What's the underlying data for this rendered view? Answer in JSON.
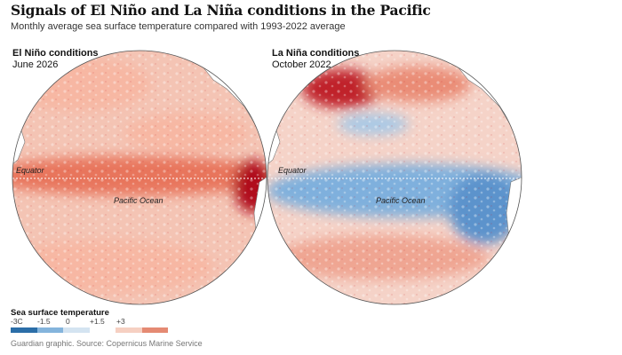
{
  "title": "Signals of El Niño and La Niña conditions in the Pacific",
  "subtitle": "Monthly average sea surface temperature compared with 1993-2022 average",
  "panels": [
    {
      "name": "El Niño conditions",
      "date": "June 2026",
      "equator_label": "Equator",
      "ocean_label": "Pacific Ocean",
      "colors": {
        "base": "#f4c4b4",
        "equator": "#e8745c",
        "coast": "#b0101e",
        "north": "#f7b7a3"
      }
    },
    {
      "name": "La Niña conditions",
      "date": "October 2022",
      "equator_label": "Equator",
      "ocean_label": "Pacific Ocean",
      "colors": {
        "base": "#f5d3c8",
        "equator": "#7fb0dd",
        "coast": "#5b93cc",
        "north": "#c0202c"
      }
    }
  ],
  "legend": {
    "title": "Sea surface temperature",
    "ticks": [
      "-3C",
      "-1.5",
      "0",
      "+1.5",
      "+3"
    ],
    "colors": [
      "#2b6ea8",
      "#84b4dc",
      "#d4e4f1",
      "#ffffff",
      "#f6d0c2",
      "#e58a73",
      "#c8232f"
    ]
  },
  "source": "Guardian graphic. Source: Copernicus Marine Service"
}
